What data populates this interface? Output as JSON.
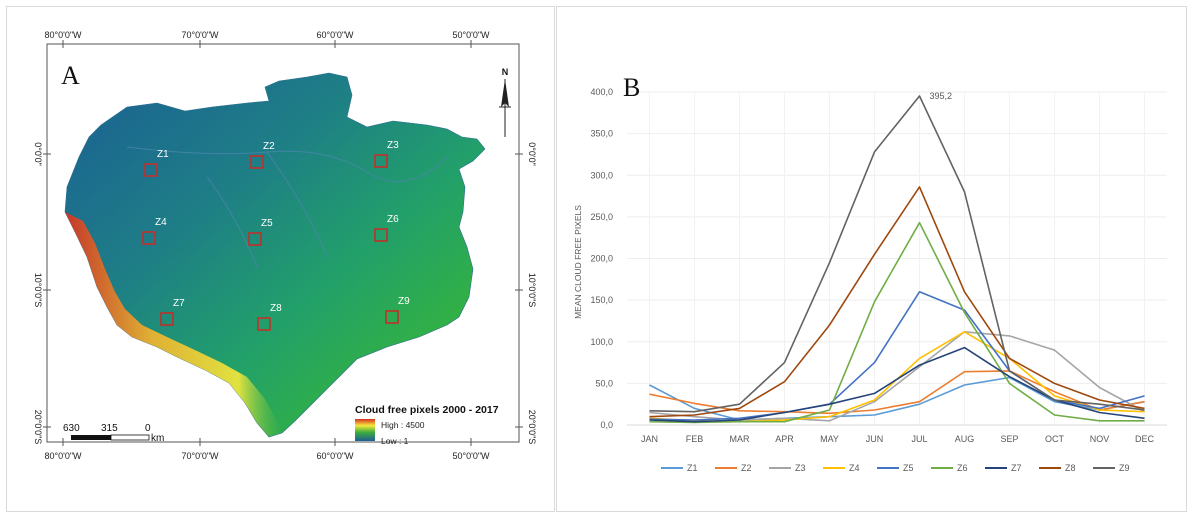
{
  "panel_a": {
    "letter": "A",
    "top_labels": [
      "80°0'0\"W",
      "70°0'0\"W",
      "60°0'0\"W",
      "50°0'0\"W"
    ],
    "bottom_labels": [
      "80°0'0\"W",
      "70°0'0\"W",
      "60°0'0\"W",
      "50°0'0\"W"
    ],
    "left_labels": [
      "0°0'0\"",
      "10°0'0\"S",
      "20°0'0\"S"
    ],
    "right_labels": [
      "0°0'0\"",
      "10°0'0\"S",
      "20°0'0\"S"
    ],
    "zones": [
      "Z1",
      "Z2",
      "Z3",
      "Z4",
      "Z5",
      "Z6",
      "Z7",
      "Z8",
      "Z9"
    ],
    "legend": {
      "title": "Cloud free pixels 2000 - 2017",
      "high": "High : 4500",
      "low": "Low : 1"
    },
    "scale_bar": {
      "labels": [
        "630",
        "315",
        "0"
      ],
      "unit": "km"
    },
    "north": "N",
    "colors": {
      "high": "#d7301f",
      "mid": "#f5e93c",
      "green": "#3fae3a",
      "low": "#1b5f94",
      "zone_box": "#c0302a"
    }
  },
  "panel_b": {
    "letter": "B",
    "chart_data": {
      "type": "line",
      "ylabel": "MEAN CLOUD FREE PIXELS",
      "xlabel": "",
      "categories": [
        "JAN",
        "FEB",
        "MAR",
        "APR",
        "MAY",
        "JUN",
        "JUL",
        "AUG",
        "SEP",
        "OCT",
        "NOV",
        "DEC"
      ],
      "yticks": [
        "0,0",
        "50,0",
        "100,0",
        "150,0",
        "200,0",
        "250,0",
        "300,0",
        "350,0",
        "400,0"
      ],
      "ylim": [
        0,
        400
      ],
      "annotation": {
        "text": "395,2",
        "series": "Z9",
        "category": "JUL"
      },
      "legend_position": "bottom",
      "series": [
        {
          "name": "Z1",
          "color": "#5b9bd5",
          "values": [
            48,
            20,
            6,
            8,
            10,
            12,
            25,
            48,
            57,
            28,
            18,
            28
          ]
        },
        {
          "name": "Z2",
          "color": "#ed7d31",
          "values": [
            37,
            26,
            17,
            16,
            14,
            18,
            28,
            64,
            65,
            40,
            18,
            28
          ]
        },
        {
          "name": "Z3",
          "color": "#a5a5a5",
          "values": [
            15,
            10,
            6,
            8,
            5,
            28,
            70,
            112,
            107,
            90,
            45,
            16
          ]
        },
        {
          "name": "Z4",
          "color": "#ffc000",
          "values": [
            8,
            5,
            4,
            6,
            10,
            30,
            80,
            112,
            80,
            35,
            18,
            16
          ]
        },
        {
          "name": "Z5",
          "color": "#4472c4",
          "values": [
            7,
            6,
            8,
            15,
            25,
            75,
            160,
            138,
            65,
            30,
            20,
            35
          ]
        },
        {
          "name": "Z6",
          "color": "#70ad47",
          "values": [
            4,
            3,
            4,
            4,
            18,
            148,
            243,
            135,
            50,
            12,
            5,
            5
          ]
        },
        {
          "name": "Z7",
          "color": "#264478",
          "values": [
            6,
            4,
            6,
            15,
            25,
            38,
            72,
            93,
            58,
            30,
            15,
            8
          ]
        },
        {
          "name": "Z8",
          "color": "#9e480e",
          "values": [
            10,
            12,
            20,
            52,
            120,
            205,
            286,
            160,
            80,
            50,
            30,
            20
          ]
        },
        {
          "name": "Z9",
          "color": "#636363",
          "values": [
            17,
            16,
            25,
            75,
            195,
            328,
            395.2,
            280,
            65,
            30,
            25,
            18
          ]
        }
      ]
    }
  }
}
